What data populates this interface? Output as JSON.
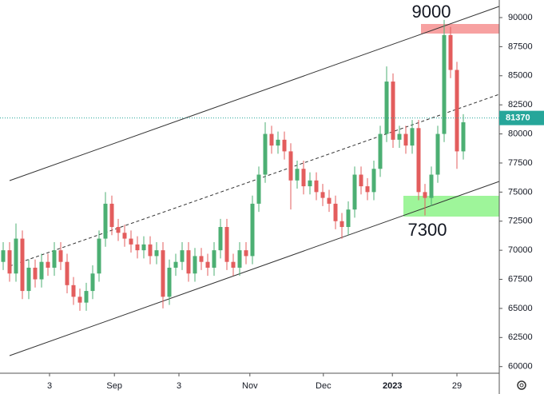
{
  "chart_data": {
    "type": "candlestick",
    "up_color": "#4caf73",
    "down_color": "#e35d5d",
    "open": [
      69000,
      70000,
      68000,
      71000,
      66500,
      68500,
      67500,
      69000,
      68500,
      70000,
      69000,
      67000,
      66000,
      65500,
      66500,
      68000,
      71000,
      74000,
      72000,
      71500,
      71000,
      70500,
      70000,
      70500,
      69500,
      70000,
      66000,
      68500,
      69000,
      70000,
      68000,
      69500,
      69000,
      68500,
      70000,
      72000,
      69000,
      68500,
      70000,
      69500,
      74000,
      76500,
      80000,
      79000,
      79500,
      78500,
      76000,
      77000,
      75500,
      76000,
      75000,
      74500,
      74000,
      72500,
      72000,
      73500,
      76500,
      75500,
      75000,
      77000,
      80000,
      84500,
      79500,
      80000,
      79000,
      80500,
      75000,
      74500,
      76500,
      80000,
      88500,
      85500,
      78500
    ],
    "close": [
      70000,
      68000,
      71000,
      66500,
      68500,
      67500,
      69000,
      68500,
      70000,
      69000,
      67000,
      66000,
      65500,
      66500,
      68000,
      71000,
      74000,
      72000,
      71500,
      71000,
      70500,
      70000,
      70500,
      69500,
      70000,
      66000,
      68500,
      69000,
      70000,
      68000,
      69500,
      69000,
      68500,
      70000,
      72000,
      69000,
      68500,
      70000,
      69500,
      74000,
      76500,
      80000,
      79000,
      79500,
      78500,
      76000,
      77000,
      75500,
      76000,
      75000,
      74500,
      74000,
      72500,
      72000,
      73500,
      76500,
      75500,
      75000,
      77000,
      80000,
      84500,
      79500,
      80000,
      79000,
      80500,
      75000,
      74500,
      76500,
      80000,
      88500,
      85500,
      78500,
      81000
    ],
    "high": [
      70700,
      70700,
      72300,
      71700,
      69200,
      69200,
      69700,
      69700,
      70700,
      70700,
      69700,
      67700,
      66700,
      67200,
      68700,
      71700,
      75000,
      74700,
      72700,
      72200,
      71700,
      71200,
      71200,
      71200,
      70700,
      70700,
      69200,
      69700,
      70700,
      70700,
      70200,
      70200,
      69700,
      70700,
      72700,
      72700,
      69700,
      70700,
      70700,
      74700,
      77200,
      81000,
      80700,
      80200,
      80200,
      79200,
      77700,
      77700,
      76700,
      76700,
      75700,
      75200,
      74700,
      73200,
      74200,
      77200,
      77200,
      76200,
      77700,
      80700,
      85800,
      85200,
      80700,
      80700,
      81200,
      81200,
      75700,
      77200,
      80700,
      89800,
      89200,
      86200,
      81700
    ],
    "low": [
      68300,
      67300,
      67300,
      65800,
      65800,
      66800,
      66800,
      67800,
      67800,
      68300,
      66300,
      65300,
      64800,
      64800,
      65800,
      67300,
      70300,
      71300,
      70800,
      70300,
      69800,
      69300,
      69300,
      68800,
      68800,
      65000,
      65300,
      67800,
      68300,
      67300,
      67300,
      68300,
      67800,
      67800,
      69300,
      68300,
      67800,
      67800,
      68800,
      68800,
      73300,
      75800,
      78300,
      78300,
      77800,
      73500,
      75300,
      74800,
      74800,
      74300,
      73800,
      73300,
      71800,
      71000,
      71300,
      72800,
      74800,
      74300,
      74300,
      76300,
      79300,
      78800,
      78800,
      78300,
      78300,
      74300,
      73000,
      73800,
      75800,
      79300,
      84800,
      77000,
      77800
    ],
    "xlim": [
      -0.5,
      77.625
    ],
    "xticks": [
      {
        "value": 7.25,
        "label": "3"
      },
      {
        "value": 17.4,
        "label": "Sep"
      },
      {
        "value": 27.5,
        "label": "3"
      },
      {
        "value": 38.6,
        "label": "Nov"
      },
      {
        "value": 50.1,
        "label": "Dec"
      },
      {
        "value": 60.9,
        "label": "2023"
      },
      {
        "value": 71,
        "label": "29"
      }
    ],
    "ylim": [
      59430,
      90000
    ],
    "yticks": [
      60000,
      62500,
      65000,
      67500,
      70000,
      72500,
      75000,
      77500,
      80000,
      82500,
      85000,
      87500,
      90000
    ],
    "last_price": 81370,
    "annotations": [
      "9000",
      "7300"
    ]
  }
}
